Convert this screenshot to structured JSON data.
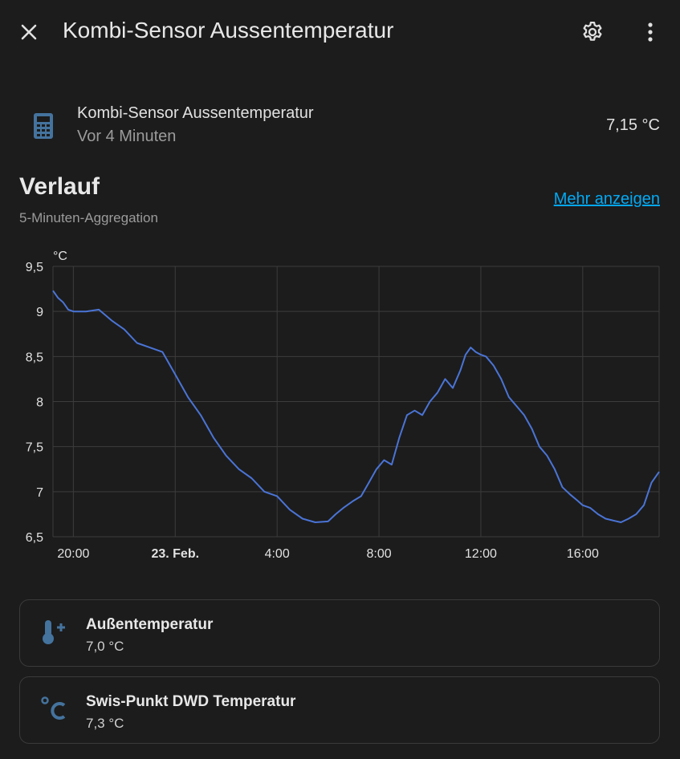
{
  "header": {
    "title": "Kombi-Sensor Aussentemperatur",
    "close_icon": "close-icon",
    "settings_icon": "gear-icon",
    "more_icon": "more-vertical-icon"
  },
  "entity": {
    "icon": "calculator-icon",
    "name": "Kombi-Sensor Aussentemperatur",
    "last_changed": "Vor 4 Minuten",
    "state": "7,15 °C"
  },
  "history": {
    "title": "Verlauf",
    "subtitle": "5-Minuten-Aggregation",
    "more_link": "Mehr anzeigen"
  },
  "chart_data": {
    "type": "line",
    "unit": "°C",
    "y_ticks": [
      "9,5",
      "9",
      "8,5",
      "8",
      "7,5",
      "7",
      "6,5"
    ],
    "x_ticks": [
      "20:00",
      "23. Feb.",
      "4:00",
      "8:00",
      "12:00",
      "16:00"
    ],
    "ylim": [
      6.5,
      9.5
    ],
    "xlim_hours": [
      -0.8,
      23.0
    ],
    "grid": true,
    "line_color": "#4a74d6",
    "series": [
      {
        "x": [
          -0.8,
          -0.6,
          -0.4,
          -0.2,
          0,
          0.5,
          1,
          1.5,
          2,
          2.5,
          3,
          3.5,
          4,
          4.5,
          5,
          5.5,
          6,
          6.5,
          7,
          7.5,
          8,
          8.5,
          9,
          9.5,
          10,
          10.3,
          10.6,
          11,
          11.3,
          11.6,
          11.9,
          12.2,
          12.5,
          12.8,
          13.1,
          13.4,
          13.7,
          14,
          14.3,
          14.6,
          14.9,
          15.2,
          15.4,
          15.6,
          15.8,
          16,
          16.2,
          16.5,
          16.8,
          17.1,
          17.4,
          17.7,
          18,
          18.3,
          18.6,
          18.9,
          19.2,
          19.5,
          19.8,
          20,
          20.3,
          20.6,
          20.9,
          21.2,
          21.5,
          21.8,
          22.1,
          22.4,
          22.7,
          23
        ],
        "y": [
          9.23,
          9.15,
          9.1,
          9.02,
          9.0,
          9.0,
          9.02,
          8.9,
          8.8,
          8.65,
          8.6,
          8.55,
          8.3,
          8.05,
          7.85,
          7.6,
          7.4,
          7.25,
          7.15,
          7.0,
          6.95,
          6.8,
          6.7,
          6.66,
          6.67,
          6.75,
          6.82,
          6.9,
          6.95,
          7.1,
          7.25,
          7.35,
          7.3,
          7.6,
          7.85,
          7.9,
          7.85,
          8.0,
          8.1,
          8.25,
          8.15,
          8.35,
          8.52,
          8.6,
          8.55,
          8.52,
          8.5,
          8.4,
          8.25,
          8.05,
          7.95,
          7.85,
          7.7,
          7.5,
          7.4,
          7.25,
          7.05,
          6.97,
          6.9,
          6.85,
          6.82,
          6.75,
          6.7,
          6.68,
          6.66,
          6.7,
          6.75,
          6.85,
          7.1,
          7.22
        ]
      }
    ]
  },
  "cards": [
    {
      "icon": "thermometer-plus-icon",
      "name": "Außentemperatur",
      "state": "7,0 °C"
    },
    {
      "icon": "celsius-icon",
      "name": "Swis-Punkt DWD Temperatur",
      "state": "7,3 °C"
    }
  ]
}
